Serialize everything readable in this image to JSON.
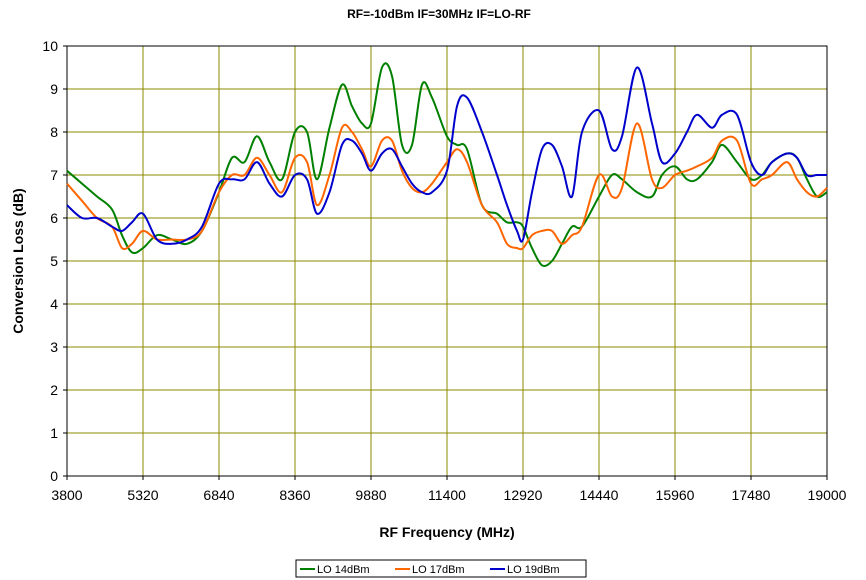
{
  "chart_data": {
    "type": "line",
    "title": "RF=-10dBm IF=30MHz IF=LO-RF",
    "xlabel": "RF Frequency (MHz)",
    "ylabel": "Conversion Loss (dB)",
    "xlim": [
      3800,
      19000
    ],
    "ylim": [
      0,
      10
    ],
    "xticks": [
      3800,
      5320,
      6840,
      8360,
      9880,
      11400,
      12920,
      14440,
      15960,
      17480,
      19000
    ],
    "yticks": [
      0,
      1,
      2,
      3,
      4,
      5,
      6,
      7,
      8,
      9,
      10
    ],
    "grid": true,
    "legend_position": "bottom",
    "series": [
      {
        "name": "LO 14dBm",
        "color": "#008000",
        "x": [
          3800,
          4100,
          4400,
          4700,
          4900,
          5100,
          5320,
          5600,
          5900,
          6200,
          6500,
          6840,
          7100,
          7350,
          7600,
          7850,
          8100,
          8360,
          8600,
          8800,
          9050,
          9300,
          9500,
          9700,
          9880,
          10100,
          10300,
          10500,
          10700,
          10900,
          11100,
          11400,
          11600,
          11800,
          12100,
          12400,
          12600,
          12800,
          12920,
          13100,
          13300,
          13500,
          13700,
          13900,
          14100,
          14440,
          14700,
          14900,
          15200,
          15500,
          15700,
          15960,
          16200,
          16400,
          16700,
          16900,
          17200,
          17480,
          17700,
          17900,
          18200,
          18400,
          18600,
          18800,
          19000
        ],
        "values": [
          7.1,
          6.8,
          6.5,
          6.2,
          5.6,
          5.2,
          5.3,
          5.6,
          5.5,
          5.4,
          5.7,
          6.6,
          7.4,
          7.3,
          7.9,
          7.3,
          6.9,
          8.0,
          8.0,
          6.9,
          8.1,
          9.1,
          8.6,
          8.2,
          8.2,
          9.5,
          9.3,
          7.7,
          7.7,
          9.1,
          8.8,
          7.9,
          7.7,
          7.6,
          6.3,
          6.1,
          5.9,
          5.9,
          5.8,
          5.3,
          4.9,
          5.0,
          5.4,
          5.8,
          5.8,
          6.5,
          7.0,
          6.9,
          6.6,
          6.5,
          7.0,
          7.2,
          6.9,
          6.9,
          7.3,
          7.7,
          7.3,
          6.9,
          7.0,
          7.3,
          7.5,
          7.4,
          6.9,
          6.5,
          6.6
        ]
      },
      {
        "name": "LO 17dBm",
        "color": "#FF6600",
        "x": [
          3800,
          4100,
          4400,
          4700,
          4900,
          5100,
          5320,
          5600,
          5900,
          6200,
          6500,
          6840,
          7100,
          7350,
          7600,
          7850,
          8100,
          8360,
          8600,
          8800,
          9050,
          9300,
          9500,
          9700,
          9880,
          10100,
          10300,
          10500,
          10700,
          10900,
          11100,
          11400,
          11600,
          11800,
          12100,
          12400,
          12600,
          12800,
          12920,
          13100,
          13300,
          13500,
          13700,
          13900,
          14100,
          14440,
          14700,
          14900,
          15200,
          15500,
          15700,
          15960,
          16200,
          16400,
          16700,
          16900,
          17200,
          17480,
          17700,
          17900,
          18200,
          18400,
          18600,
          18800,
          19000
        ],
        "values": [
          6.8,
          6.4,
          6.0,
          5.8,
          5.3,
          5.4,
          5.7,
          5.5,
          5.5,
          5.5,
          5.7,
          6.6,
          7.0,
          7.0,
          7.4,
          7.0,
          6.6,
          7.4,
          7.3,
          6.3,
          7.0,
          8.1,
          8.0,
          7.6,
          7.2,
          7.8,
          7.8,
          7.1,
          6.7,
          6.6,
          6.8,
          7.3,
          7.6,
          7.3,
          6.3,
          5.9,
          5.4,
          5.3,
          5.3,
          5.6,
          5.7,
          5.7,
          5.4,
          5.6,
          5.8,
          7.0,
          6.5,
          6.7,
          8.2,
          6.9,
          6.7,
          7.0,
          7.1,
          7.2,
          7.4,
          7.8,
          7.8,
          6.8,
          6.9,
          7.0,
          7.3,
          6.9,
          6.6,
          6.5,
          6.7
        ]
      },
      {
        "name": "LO 19dBm",
        "color": "#0000CC",
        "x": [
          3800,
          4100,
          4400,
          4700,
          4900,
          5100,
          5320,
          5600,
          5900,
          6200,
          6500,
          6840,
          7100,
          7350,
          7600,
          7850,
          8100,
          8360,
          8600,
          8800,
          9050,
          9300,
          9500,
          9700,
          9880,
          10100,
          10300,
          10500,
          10700,
          10900,
          11100,
          11400,
          11600,
          11800,
          12100,
          12400,
          12600,
          12800,
          12920,
          13100,
          13300,
          13500,
          13700,
          13900,
          14100,
          14440,
          14700,
          14900,
          15200,
          15500,
          15700,
          15960,
          16200,
          16400,
          16700,
          16900,
          17200,
          17480,
          17700,
          17900,
          18200,
          18400,
          18600,
          18800,
          19000
        ],
        "values": [
          6.3,
          6.0,
          6.0,
          5.8,
          5.7,
          5.9,
          6.1,
          5.5,
          5.4,
          5.5,
          5.8,
          6.8,
          6.9,
          6.9,
          7.3,
          6.8,
          6.5,
          7.0,
          6.9,
          6.1,
          6.6,
          7.7,
          7.8,
          7.5,
          7.1,
          7.5,
          7.6,
          7.2,
          6.8,
          6.6,
          6.6,
          7.1,
          8.6,
          8.8,
          8.0,
          7.0,
          6.3,
          5.7,
          5.5,
          6.6,
          7.6,
          7.7,
          7.2,
          6.5,
          8.0,
          8.5,
          7.6,
          7.9,
          9.5,
          8.2,
          7.3,
          7.5,
          8.0,
          8.4,
          8.1,
          8.4,
          8.4,
          7.3,
          7.0,
          7.3,
          7.5,
          7.4,
          7.0,
          7.0,
          7.0
        ]
      }
    ]
  }
}
